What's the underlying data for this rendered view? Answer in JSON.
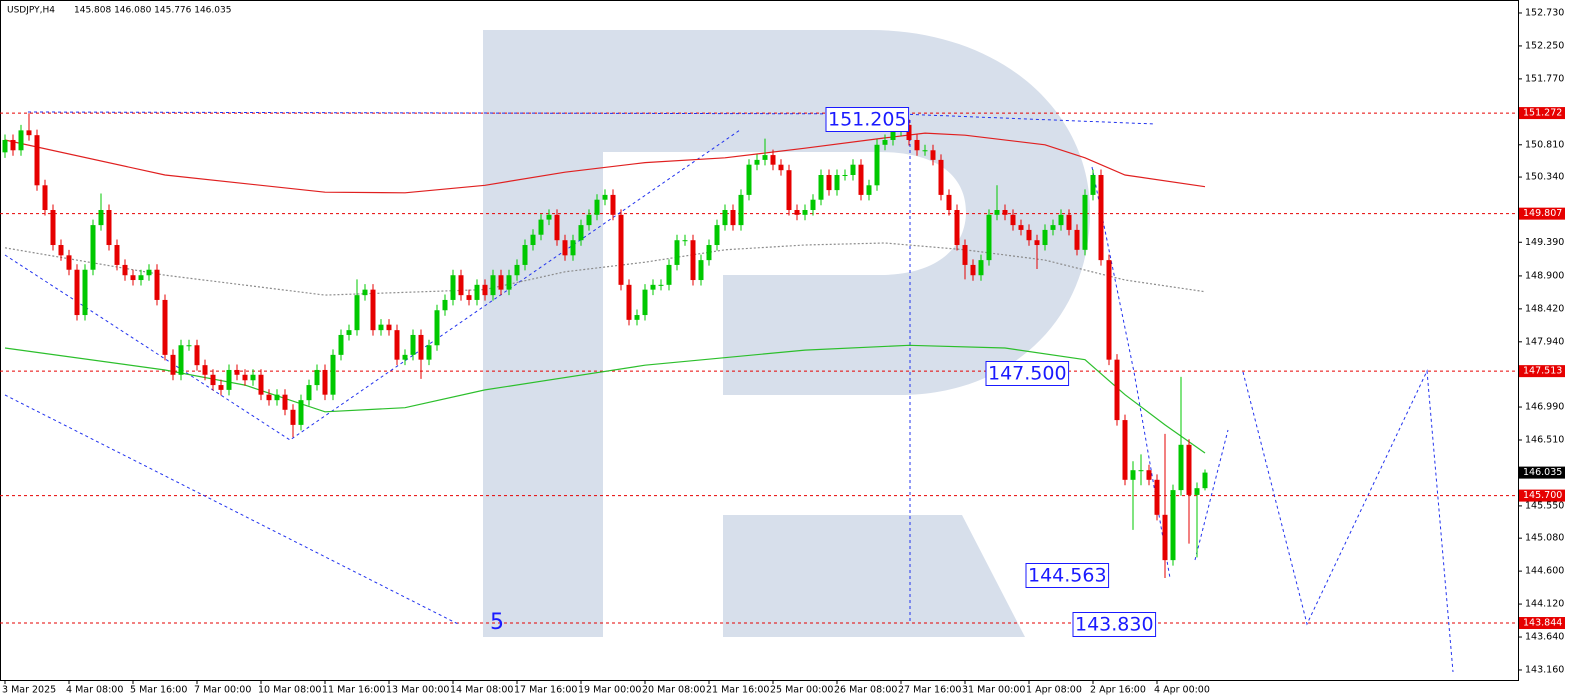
{
  "chart_data": {
    "type": "candlestick",
    "title": "USDJPY,H4",
    "ohlc_label": "145.808 146.080 145.776 146.035",
    "up_color": "#00c800",
    "down_color": "#e60000",
    "ylim": [
      143.014,
      152.919
    ],
    "yticks": [
      {
        "value": 152.73,
        "label": "152.730"
      },
      {
        "value": 152.25,
        "label": "152.250"
      },
      {
        "value": 151.77,
        "label": "151.770"
      },
      {
        "value": 150.81,
        "label": "150.810"
      },
      {
        "value": 150.34,
        "label": "150.340"
      },
      {
        "value": 149.39,
        "label": "149.390"
      },
      {
        "value": 148.9,
        "label": "148.900"
      },
      {
        "value": 148.42,
        "label": "148.420"
      },
      {
        "value": 147.94,
        "label": "147.940"
      },
      {
        "value": 146.99,
        "label": "146.990"
      },
      {
        "value": 146.51,
        "label": "146.510"
      },
      {
        "value": 145.55,
        "label": "145.550"
      },
      {
        "value": 145.08,
        "label": "145.080"
      },
      {
        "value": 144.6,
        "label": "144.600"
      },
      {
        "value": 144.12,
        "label": "144.120"
      },
      {
        "value": 143.64,
        "label": "143.640"
      },
      {
        "value": 143.16,
        "label": "143.160"
      }
    ],
    "price_levels": [
      151.272,
      149.807,
      147.513,
      {
        "value": 145.7,
        "label": "145.700"
      },
      143.844
    ],
    "level_color": "#e60000",
    "current_price": 146.035,
    "categories": [
      "3 Mar 2025",
      null,
      null,
      null,
      null,
      null,
      null,
      null,
      "4 Mar 08:00",
      null,
      null,
      null,
      null,
      null,
      null,
      null,
      "5 Mar 16:00",
      null,
      null,
      null,
      null,
      null,
      null,
      null,
      "7 Mar 00:00",
      null,
      null,
      null,
      null,
      null,
      null,
      null,
      "10 Mar 08:00",
      null,
      null,
      null,
      null,
      null,
      null,
      null,
      "11 Mar 16:00",
      null,
      null,
      null,
      null,
      null,
      null,
      null,
      "13 Mar 00:00",
      null,
      null,
      null,
      null,
      null,
      null,
      null,
      "14 Mar 08:00",
      null,
      null,
      null,
      null,
      null,
      null,
      null,
      "17 Mar 16:00",
      null,
      null,
      null,
      null,
      null,
      null,
      null,
      "19 Mar 00:00",
      null,
      null,
      null,
      null,
      null,
      null,
      null,
      "20 Mar 08:00",
      null,
      null,
      null,
      null,
      null,
      null,
      null,
      "21 Mar 16:00",
      null,
      null,
      null,
      null,
      null,
      null,
      null,
      "25 Mar 00:00",
      null,
      null,
      null,
      null,
      null,
      null,
      null,
      "26 Mar 08:00",
      null,
      null,
      null,
      null,
      null,
      null,
      null,
      "27 Mar 16:00",
      null,
      null,
      null,
      null,
      null,
      null,
      null,
      "31 Mar 00:00",
      null,
      null,
      null,
      null,
      null,
      null,
      null,
      "1 Apr 08:00",
      null,
      null,
      null,
      null,
      null,
      null,
      null,
      "2 Apr 16:00",
      null,
      null,
      null,
      null,
      null,
      null,
      null,
      "4 Apr 00:00",
      null,
      null,
      null,
      null,
      null,
      null
    ],
    "candles": {
      "open": [
        150.7,
        150.88,
        150.73,
        151.02,
        150.95,
        150.22,
        149.86,
        149.35,
        149.2,
        148.99,
        148.33,
        148.99,
        149.64,
        149.86,
        149.35,
        149.06,
        148.91,
        148.84,
        148.91,
        148.99,
        148.55,
        147.75,
        147.46,
        147.89,
        147.89,
        147.6,
        147.46,
        147.31,
        147.24,
        147.53,
        147.46,
        147.38,
        147.46,
        147.17,
        147.09,
        147.17,
        146.95,
        146.73,
        147.09,
        147.31,
        147.53,
        147.17,
        147.75,
        148.04,
        148.11,
        148.62,
        148.7,
        148.11,
        148.19,
        148.11,
        147.68,
        147.75,
        148.04,
        147.68,
        147.89,
        148.4,
        148.55,
        148.91,
        148.62,
        148.55,
        148.77,
        148.62,
        148.91,
        148.7,
        148.91,
        149.06,
        149.35,
        149.5,
        149.72,
        149.79,
        149.42,
        149.2,
        149.42,
        149.64,
        149.79,
        150.01,
        150.08,
        149.79,
        148.77,
        148.26,
        148.33,
        148.7,
        148.77,
        148.77,
        149.06,
        149.42,
        149.42,
        148.84,
        149.13,
        149.35,
        149.64,
        149.86,
        149.64,
        150.08,
        150.52,
        150.59,
        150.66,
        150.52,
        150.44,
        149.86,
        149.79,
        149.86,
        150.01,
        150.37,
        150.15,
        150.37,
        150.37,
        150.52,
        150.08,
        150.22,
        150.81,
        150.88,
        151.02,
        151.1,
        150.88,
        150.73,
        150.73,
        150.59,
        150.08,
        149.86,
        149.35,
        149.06,
        148.91,
        149.13,
        149.79,
        149.86,
        149.79,
        149.64,
        149.57,
        149.42,
        149.35,
        149.57,
        149.64,
        149.79,
        149.57,
        149.28,
        150.08,
        150.37,
        149.13,
        147.68,
        146.8,
        145.93,
        146.07,
        146.07,
        145.93,
        145.42,
        144.76,
        145.78,
        146.44,
        145.71,
        145.808
      ],
      "high": [
        150.96,
        150.96,
        151.1,
        151.27,
        151.03,
        150.3,
        149.94,
        149.43,
        149.28,
        149.07,
        149.07,
        149.72,
        150.1,
        149.94,
        149.43,
        149.14,
        148.99,
        148.99,
        149.07,
        149.07,
        148.63,
        147.83,
        147.97,
        147.97,
        147.97,
        147.68,
        147.54,
        147.39,
        147.61,
        147.61,
        147.54,
        147.54,
        147.54,
        147.25,
        147.25,
        147.25,
        147.03,
        147.17,
        147.39,
        147.61,
        147.61,
        147.83,
        148.12,
        148.19,
        148.85,
        148.78,
        148.78,
        148.27,
        148.27,
        148.19,
        147.83,
        148.12,
        148.12,
        147.97,
        148.48,
        148.63,
        148.99,
        148.99,
        148.7,
        148.85,
        148.85,
        148.99,
        148.99,
        148.99,
        149.14,
        149.43,
        149.58,
        149.8,
        149.87,
        149.87,
        149.5,
        149.5,
        149.72,
        149.87,
        150.09,
        150.16,
        150.16,
        149.87,
        148.85,
        148.41,
        148.78,
        148.85,
        148.85,
        149.14,
        149.5,
        149.5,
        149.5,
        149.21,
        149.43,
        149.72,
        149.94,
        149.94,
        150.16,
        150.6,
        150.67,
        150.9,
        150.74,
        150.6,
        150.52,
        149.94,
        149.94,
        150.09,
        150.45,
        150.45,
        150.45,
        150.45,
        150.6,
        150.6,
        150.3,
        150.89,
        150.96,
        151.1,
        151.21,
        151.18,
        150.96,
        150.81,
        150.81,
        150.67,
        150.16,
        149.94,
        149.43,
        149.14,
        149.21,
        149.87,
        150.22,
        149.94,
        149.87,
        149.72,
        149.65,
        149.5,
        149.65,
        149.72,
        149.87,
        149.87,
        149.65,
        150.16,
        150.45,
        150.45,
        149.21,
        147.76,
        146.88,
        146.2,
        146.3,
        146.15,
        146.01,
        146.6,
        145.86,
        147.43,
        146.52,
        145.89,
        146.08
      ],
      "low": [
        150.62,
        150.65,
        150.65,
        150.87,
        150.14,
        149.78,
        149.27,
        149.12,
        148.91,
        148.25,
        148.25,
        148.91,
        149.56,
        149.27,
        148.98,
        148.83,
        148.76,
        148.76,
        148.83,
        148.47,
        147.67,
        147.38,
        147.38,
        147.81,
        147.52,
        147.38,
        147.23,
        147.16,
        147.16,
        147.38,
        147.3,
        147.3,
        147.09,
        147.01,
        147.01,
        146.87,
        146.55,
        146.65,
        147.01,
        147.23,
        147.09,
        147.09,
        147.67,
        147.96,
        148.03,
        148.54,
        148.03,
        148.03,
        148.03,
        147.6,
        147.6,
        147.67,
        147.4,
        147.6,
        147.81,
        148.32,
        148.47,
        148.54,
        148.47,
        148.47,
        148.54,
        148.54,
        148.62,
        148.62,
        148.83,
        148.98,
        149.27,
        149.42,
        149.64,
        149.34,
        149.12,
        149.12,
        149.34,
        149.56,
        149.71,
        149.93,
        149.71,
        148.69,
        148.18,
        148.18,
        148.25,
        148.62,
        148.69,
        148.69,
        148.98,
        149.34,
        148.76,
        148.76,
        149.05,
        149.27,
        149.56,
        149.56,
        149.56,
        150.0,
        150.44,
        150.51,
        150.44,
        150.36,
        149.78,
        149.71,
        149.71,
        149.78,
        149.93,
        150.07,
        150.07,
        150.29,
        150.29,
        150.0,
        150.0,
        150.14,
        150.73,
        150.8,
        150.94,
        150.8,
        150.65,
        150.65,
        150.51,
        150.0,
        149.78,
        149.27,
        148.85,
        148.83,
        148.83,
        149.05,
        149.71,
        149.71,
        149.56,
        149.49,
        149.34,
        149.0,
        149.27,
        149.49,
        149.56,
        149.49,
        149.2,
        149.2,
        150.0,
        149.05,
        147.6,
        146.72,
        145.85,
        145.2,
        145.85,
        145.85,
        145.34,
        144.5,
        144.68,
        145.7,
        145.0,
        144.8,
        145.776
      ],
      "close": [
        150.88,
        150.73,
        151.02,
        150.95,
        150.22,
        149.86,
        149.35,
        149.2,
        148.99,
        148.33,
        148.99,
        149.64,
        149.86,
        149.35,
        149.06,
        148.91,
        148.84,
        148.91,
        148.99,
        148.55,
        147.75,
        147.46,
        147.89,
        147.89,
        147.6,
        147.46,
        147.31,
        147.24,
        147.53,
        147.46,
        147.38,
        147.46,
        147.17,
        147.09,
        147.17,
        146.95,
        146.73,
        147.09,
        147.31,
        147.53,
        147.17,
        147.75,
        148.04,
        148.11,
        148.62,
        148.7,
        148.11,
        148.19,
        148.11,
        147.68,
        147.75,
        148.04,
        147.68,
        147.89,
        148.4,
        148.55,
        148.91,
        148.62,
        148.55,
        148.77,
        148.62,
        148.91,
        148.7,
        148.91,
        149.06,
        149.35,
        149.5,
        149.72,
        149.79,
        149.42,
        149.2,
        149.42,
        149.64,
        149.79,
        150.01,
        150.08,
        149.79,
        148.77,
        148.26,
        148.33,
        148.7,
        148.77,
        148.77,
        149.06,
        149.42,
        149.42,
        148.84,
        149.13,
        149.35,
        149.64,
        149.86,
        149.64,
        150.08,
        150.52,
        150.59,
        150.66,
        150.52,
        150.44,
        149.86,
        149.79,
        149.86,
        150.01,
        150.37,
        150.15,
        150.37,
        150.37,
        150.52,
        150.08,
        150.22,
        150.81,
        150.88,
        151.02,
        151.1,
        150.88,
        150.73,
        150.73,
        150.59,
        150.08,
        149.86,
        149.35,
        149.06,
        148.91,
        149.13,
        149.79,
        149.86,
        149.79,
        149.64,
        149.57,
        149.42,
        149.35,
        149.57,
        149.64,
        149.79,
        149.57,
        149.28,
        150.08,
        150.37,
        149.13,
        147.68,
        146.8,
        145.93,
        146.07,
        146.07,
        145.93,
        145.42,
        144.76,
        145.78,
        146.44,
        145.71,
        145.808,
        146.035
      ]
    },
    "lines": [
      {
        "color": "#e02020",
        "style": "solid",
        "x": [
          0,
          20,
          40,
          50,
          60,
          70,
          80,
          90,
          100,
          110,
          115,
          120,
          130,
          135,
          140,
          150
        ],
        "values": [
          150.88,
          150.37,
          150.12,
          150.11,
          150.22,
          150.41,
          150.55,
          150.62,
          150.76,
          150.91,
          150.98,
          150.95,
          150.81,
          150.62,
          150.37,
          150.2
        ]
      },
      {
        "color": "#8c8c8c",
        "style": "dotted",
        "x": [
          0,
          20,
          40,
          60,
          70,
          80,
          90,
          100,
          110,
          120,
          130,
          140,
          150
        ],
        "values": [
          149.31,
          148.91,
          148.62,
          148.7,
          148.96,
          149.1,
          149.28,
          149.35,
          149.38,
          149.28,
          149.13,
          148.84,
          148.67
        ]
      },
      {
        "color": "#2cbf2c",
        "style": "solid",
        "x": [
          0,
          20,
          30,
          40,
          50,
          60,
          80,
          100,
          113,
          125,
          135,
          140,
          145,
          150
        ],
        "values": [
          147.85,
          147.53,
          147.31,
          146.92,
          146.98,
          147.24,
          147.6,
          147.82,
          147.89,
          147.85,
          147.68,
          147.17,
          146.73,
          146.32
        ]
      }
    ],
    "annotations": [
      {
        "text": "151.205"
      },
      {
        "text": "147.500"
      },
      {
        "text": "144.563"
      },
      {
        "text": "143.830"
      },
      {
        "text": "5"
      }
    ]
  }
}
